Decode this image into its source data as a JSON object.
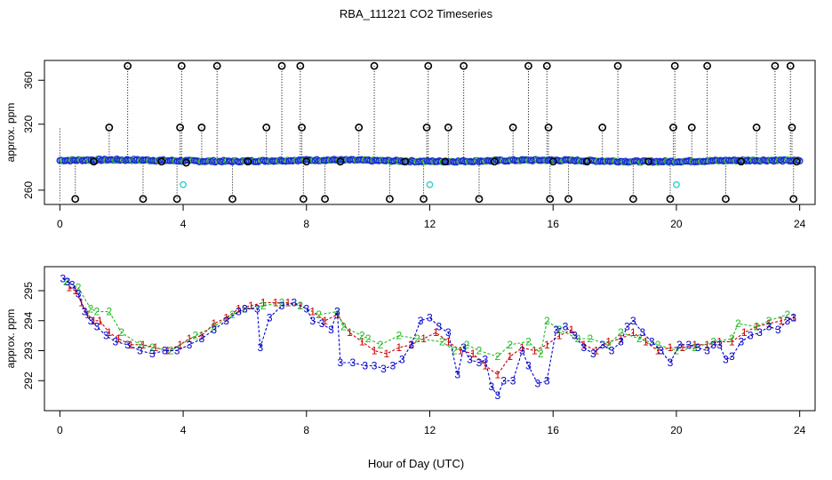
{
  "figure": {
    "title": "RBA_111221  CO2 Timeseries",
    "xlabel": "Hour of Day (UTC)"
  },
  "chart_data": [
    {
      "type": "scatter",
      "panel": "top",
      "ylabel": "approx. ppm",
      "xlim": [
        -0.5,
        24.5
      ],
      "ylim": [
        247,
        378
      ],
      "xticks": [
        0,
        4,
        8,
        12,
        16,
        20,
        24
      ],
      "yticks": [
        260,
        320,
        360
      ],
      "grid": false,
      "baseline_range": [
        282,
        288
      ],
      "baseline_start": 287,
      "baseline_end": 286.5,
      "black_points": [
        {
          "x": 0.5,
          "y": 252
        },
        {
          "x": 1.1,
          "y": 286
        },
        {
          "x": 1.6,
          "y": 317
        },
        {
          "x": 2.2,
          "y": 373
        },
        {
          "x": 2.7,
          "y": 252
        },
        {
          "x": 3.3,
          "y": 286
        },
        {
          "x": 3.8,
          "y": 252
        },
        {
          "x": 3.9,
          "y": 317
        },
        {
          "x": 3.95,
          "y": 373
        },
        {
          "x": 4.1,
          "y": 285
        },
        {
          "x": 4.6,
          "y": 317
        },
        {
          "x": 5.1,
          "y": 373
        },
        {
          "x": 5.6,
          "y": 252
        },
        {
          "x": 6.1,
          "y": 286
        },
        {
          "x": 6.7,
          "y": 317
        },
        {
          "x": 7.2,
          "y": 373
        },
        {
          "x": 7.8,
          "y": 373
        },
        {
          "x": 7.85,
          "y": 317
        },
        {
          "x": 7.9,
          "y": 252
        },
        {
          "x": 8.0,
          "y": 286
        },
        {
          "x": 8.6,
          "y": 252
        },
        {
          "x": 9.1,
          "y": 286
        },
        {
          "x": 9.7,
          "y": 317
        },
        {
          "x": 10.2,
          "y": 373
        },
        {
          "x": 10.7,
          "y": 252
        },
        {
          "x": 11.2,
          "y": 286
        },
        {
          "x": 11.8,
          "y": 252
        },
        {
          "x": 11.9,
          "y": 317
        },
        {
          "x": 11.95,
          "y": 373
        },
        {
          "x": 12.5,
          "y": 286
        },
        {
          "x": 12.6,
          "y": 317
        },
        {
          "x": 13.1,
          "y": 373
        },
        {
          "x": 13.6,
          "y": 252
        },
        {
          "x": 14.1,
          "y": 286
        },
        {
          "x": 14.7,
          "y": 317
        },
        {
          "x": 15.2,
          "y": 373
        },
        {
          "x": 15.8,
          "y": 373
        },
        {
          "x": 15.85,
          "y": 317
        },
        {
          "x": 15.9,
          "y": 252
        },
        {
          "x": 16.0,
          "y": 286
        },
        {
          "x": 16.5,
          "y": 252
        },
        {
          "x": 17.1,
          "y": 286
        },
        {
          "x": 17.6,
          "y": 317
        },
        {
          "x": 18.1,
          "y": 373
        },
        {
          "x": 18.6,
          "y": 252
        },
        {
          "x": 19.1,
          "y": 286
        },
        {
          "x": 19.8,
          "y": 252
        },
        {
          "x": 19.9,
          "y": 317
        },
        {
          "x": 19.95,
          "y": 373
        },
        {
          "x": 20.5,
          "y": 317
        },
        {
          "x": 21.0,
          "y": 373
        },
        {
          "x": 21.6,
          "y": 252
        },
        {
          "x": 22.1,
          "y": 286
        },
        {
          "x": 22.6,
          "y": 317
        },
        {
          "x": 23.2,
          "y": 373
        },
        {
          "x": 23.7,
          "y": 373
        },
        {
          "x": 23.75,
          "y": 317
        },
        {
          "x": 23.8,
          "y": 252
        },
        {
          "x": 23.9,
          "y": 286
        }
      ],
      "cyan_points": [
        {
          "x": 4.0,
          "y": 265
        },
        {
          "x": 12.0,
          "y": 265
        },
        {
          "x": 20.0,
          "y": 265
        }
      ]
    },
    {
      "type": "line",
      "panel": "bottom",
      "ylabel": "approx. ppm",
      "xlim": [
        -0.5,
        24.5
      ],
      "ylim": [
        291.0,
        295.8
      ],
      "xticks": [
        0,
        4,
        8,
        12,
        16,
        20,
        24
      ],
      "yticks": [
        292,
        293,
        294,
        295
      ],
      "grid": false,
      "colors": {
        "1": "#cc0000",
        "2": "#22bb22",
        "3": "#0000cc"
      },
      "series": [
        {
          "marker": "1",
          "x": [
            0.3,
            0.5,
            0.7,
            0.9,
            1.1,
            1.3,
            1.6,
            1.9,
            2.3,
            2.7,
            3.1,
            3.5,
            3.9,
            4.2,
            4.6,
            5.0,
            5.4,
            5.8,
            6.2,
            6.6,
            7.0,
            7.4,
            7.8,
            8.2,
            8.6,
            9.0,
            9.4,
            9.8,
            10.2,
            10.6,
            11.0,
            11.4,
            11.8,
            12.2,
            12.6,
            13.0,
            13.4,
            13.8,
            14.2,
            14.6,
            15.0,
            15.4,
            15.8,
            16.2,
            16.6,
            17.0,
            17.4,
            17.8,
            18.2,
            18.6,
            19.0,
            19.4,
            19.8,
            20.2,
            20.6,
            21.0,
            21.4,
            21.8,
            22.2,
            22.6,
            23.0,
            23.4,
            23.8
          ],
          "values": [
            295.1,
            295.0,
            294.6,
            294.2,
            294.0,
            294.0,
            293.6,
            293.4,
            293.2,
            293.2,
            293.1,
            293.0,
            293.2,
            293.4,
            293.5,
            293.9,
            294.1,
            294.4,
            294.5,
            294.6,
            294.6,
            294.6,
            294.5,
            294.3,
            294.0,
            294.2,
            293.6,
            293.3,
            293.0,
            292.9,
            293.1,
            293.2,
            293.4,
            293.6,
            293.3,
            293.0,
            292.9,
            292.5,
            292.2,
            292.8,
            293.1,
            293.0,
            293.2,
            293.5,
            293.7,
            293.2,
            293.0,
            293.3,
            293.4,
            293.6,
            293.3,
            293.0,
            293.1,
            293.1,
            293.2,
            293.2,
            293.3,
            293.3,
            293.6,
            293.8,
            293.9,
            294.0,
            294.1
          ]
        },
        {
          "marker": "2",
          "x": [
            0.2,
            0.6,
            1.0,
            1.2,
            1.6,
            2.0,
            2.6,
            3.0,
            3.6,
            4.4,
            5.0,
            5.6,
            6.0,
            6.6,
            7.2,
            7.8,
            8.4,
            9.0,
            9.2,
            9.8,
            10.0,
            10.4,
            11.0,
            11.6,
            12.4,
            12.8,
            13.2,
            13.6,
            14.2,
            14.6,
            15.2,
            15.6,
            15.8,
            16.2,
            16.8,
            17.2,
            17.8,
            18.2,
            18.8,
            19.4,
            20.0,
            20.6,
            21.2,
            21.8,
            22.0,
            22.6,
            23.0,
            23.6
          ],
          "values": [
            295.3,
            295.1,
            294.4,
            294.3,
            294.3,
            293.6,
            293.2,
            293.1,
            293.0,
            293.5,
            293.8,
            294.2,
            294.4,
            294.5,
            294.6,
            294.5,
            294.2,
            294.3,
            293.8,
            293.5,
            293.4,
            293.2,
            293.5,
            293.4,
            293.3,
            293.0,
            293.2,
            293.0,
            292.8,
            293.2,
            293.3,
            292.9,
            294.0,
            293.7,
            293.4,
            293.4,
            293.2,
            293.6,
            293.4,
            293.2,
            293.0,
            293.1,
            293.3,
            293.4,
            293.9,
            293.8,
            294.0,
            294.2
          ]
        },
        {
          "marker": "3",
          "x": [
            0.1,
            0.25,
            0.4,
            0.6,
            0.8,
            1.0,
            1.2,
            1.5,
            1.8,
            2.2,
            2.6,
            3.0,
            3.4,
            3.8,
            4.2,
            4.6,
            5.0,
            5.4,
            5.8,
            6.0,
            6.4,
            6.5,
            6.8,
            7.2,
            7.6,
            8.0,
            8.2,
            8.5,
            8.8,
            9.0,
            9.1,
            9.5,
            9.9,
            10.2,
            10.5,
            10.8,
            11.1,
            11.4,
            11.7,
            12.0,
            12.3,
            12.6,
            12.9,
            13.1,
            13.3,
            13.6,
            13.8,
            14.0,
            14.2,
            14.4,
            14.7,
            15.0,
            15.2,
            15.5,
            15.8,
            16.1,
            16.4,
            16.7,
            17.0,
            17.3,
            17.6,
            17.9,
            18.2,
            18.4,
            18.6,
            18.9,
            19.2,
            19.5,
            19.8,
            20.1,
            20.4,
            20.7,
            21.0,
            21.2,
            21.4,
            21.6,
            21.8,
            22.1,
            22.4,
            22.7,
            23.0,
            23.3,
            23.6,
            23.8
          ],
          "values": [
            295.4,
            295.3,
            295.2,
            294.9,
            294.3,
            294.0,
            293.8,
            293.5,
            293.3,
            293.2,
            293.0,
            292.9,
            293.0,
            293.0,
            293.2,
            293.4,
            293.7,
            294.0,
            294.3,
            294.4,
            294.4,
            293.1,
            294.1,
            294.5,
            294.6,
            294.4,
            294.0,
            293.9,
            293.7,
            294.3,
            292.6,
            292.6,
            292.5,
            292.5,
            292.4,
            292.5,
            292.7,
            293.2,
            294.0,
            294.1,
            293.8,
            293.6,
            292.2,
            293.1,
            292.7,
            292.6,
            292.7,
            291.8,
            291.5,
            292.0,
            292.0,
            293.0,
            292.5,
            291.9,
            292.0,
            293.7,
            293.8,
            293.5,
            293.1,
            292.9,
            293.2,
            293.0,
            293.3,
            293.8,
            294.0,
            293.6,
            293.3,
            293.0,
            292.6,
            293.2,
            293.2,
            293.1,
            293.0,
            293.2,
            293.2,
            292.7,
            292.8,
            293.3,
            293.5,
            293.6,
            293.8,
            293.7,
            294.0,
            294.1
          ]
        }
      ]
    }
  ]
}
